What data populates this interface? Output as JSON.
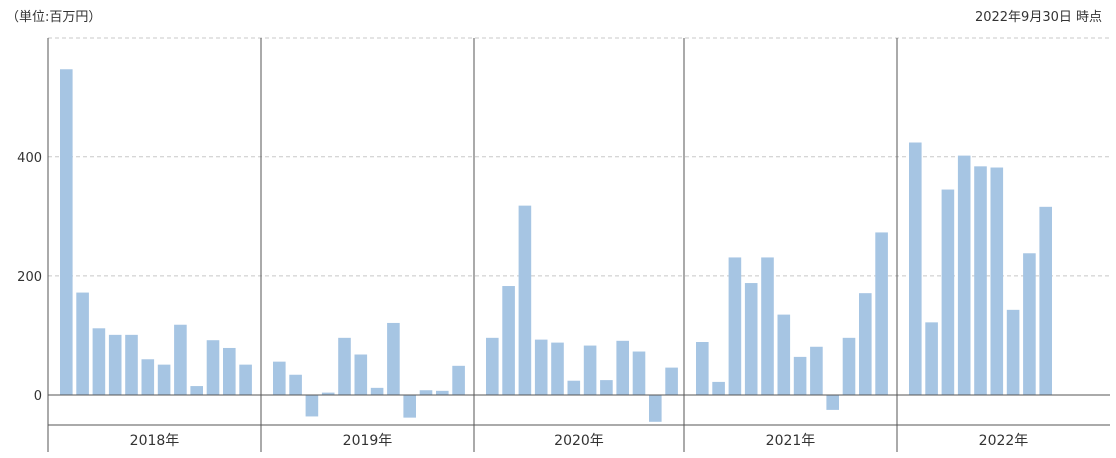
{
  "header": {
    "unit": "（単位:百万円）",
    "as_of": "2022年9月30日 時点"
  },
  "chart_data": {
    "type": "bar",
    "title": "",
    "xlabel": "",
    "ylabel": "",
    "ylim": [
      -50,
      600
    ],
    "y_ticks": [
      0,
      200,
      400
    ],
    "grid": "horizontal dashed",
    "bar_color": "#a6c5e3",
    "groups": [
      {
        "label": "2018年",
        "values": [
          547,
          172,
          112,
          101,
          101,
          60,
          51,
          118,
          15,
          92,
          79,
          51
        ]
      },
      {
        "label": "2019年",
        "values": [
          56,
          34,
          -36,
          4,
          96,
          68,
          12,
          121,
          -38,
          8,
          7,
          49
        ]
      },
      {
        "label": "2020年",
        "values": [
          96,
          183,
          318,
          93,
          88,
          24,
          83,
          25,
          91,
          73,
          -45,
          46
        ]
      },
      {
        "label": "2021年",
        "values": [
          89,
          22,
          231,
          188,
          231,
          135,
          64,
          81,
          -25,
          96,
          171,
          273
        ]
      },
      {
        "label": "2022年",
        "values": [
          424,
          122,
          345,
          402,
          384,
          382,
          143,
          238,
          316
        ]
      }
    ]
  }
}
